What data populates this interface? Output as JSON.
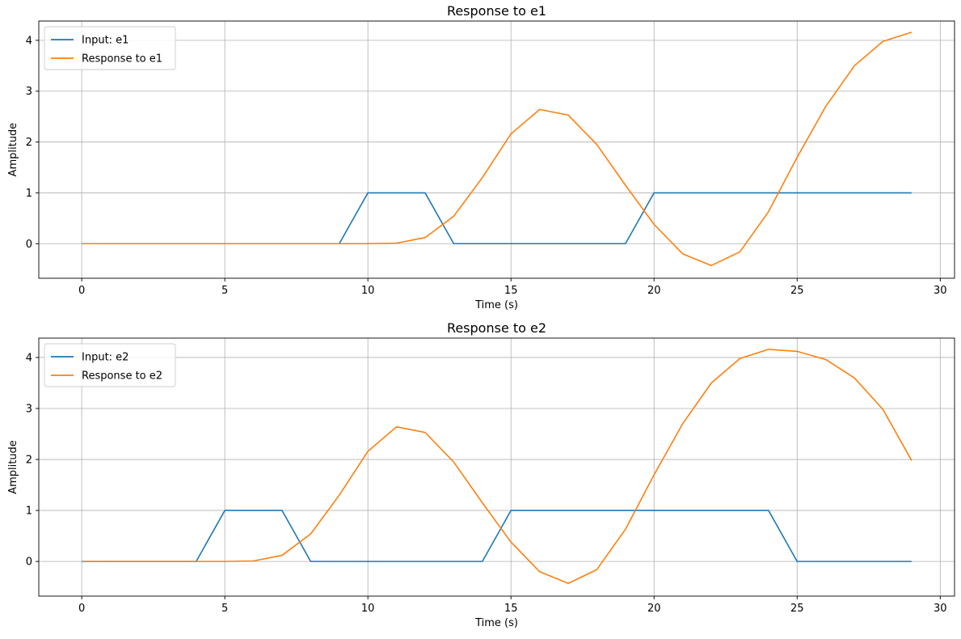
{
  "chart_data": [
    {
      "type": "line",
      "title": "Response to e1",
      "xlabel": "Time (s)",
      "ylabel": "Amplitude",
      "xlim": [
        -1.5,
        30.5
      ],
      "ylim": [
        -0.68,
        4.38
      ],
      "xticks": [
        0,
        5,
        10,
        15,
        20,
        25,
        30
      ],
      "yticks": [
        0,
        1,
        2,
        3,
        4
      ],
      "grid": true,
      "legend_position": "top-left",
      "x": [
        0,
        1,
        2,
        3,
        4,
        5,
        6,
        7,
        8,
        9,
        10,
        11,
        12,
        13,
        14,
        15,
        16,
        17,
        18,
        19,
        20,
        21,
        22,
        23,
        24,
        25,
        26,
        27,
        28,
        29
      ],
      "series": [
        {
          "name": "Input: e1",
          "color": "#1f77b4",
          "values": [
            0,
            0,
            0,
            0,
            0,
            0,
            0,
            0,
            0,
            0,
            1,
            1,
            1,
            0,
            0,
            0,
            0,
            0,
            0,
            0,
            1,
            1,
            1,
            1,
            1,
            1,
            1,
            1,
            1,
            1
          ]
        },
        {
          "name": "Response to e1",
          "color": "#ff7f0e",
          "values": [
            0,
            0,
            0,
            0,
            0,
            0,
            0,
            0,
            0,
            0,
            0,
            0.01,
            0.12,
            0.54,
            1.3,
            2.16,
            2.64,
            2.53,
            1.95,
            1.15,
            0.38,
            -0.2,
            -0.43,
            -0.16,
            0.63,
            1.7,
            2.7,
            3.5,
            3.98,
            4.16
          ]
        }
      ]
    },
    {
      "type": "line",
      "title": "Response to e2",
      "xlabel": "Time (s)",
      "ylabel": "Amplitude",
      "xlim": [
        -1.5,
        30.5
      ],
      "ylim": [
        -0.68,
        4.38
      ],
      "xticks": [
        0,
        5,
        10,
        15,
        20,
        25,
        30
      ],
      "yticks": [
        0,
        1,
        2,
        3,
        4
      ],
      "grid": true,
      "legend_position": "top-left",
      "x": [
        0,
        1,
        2,
        3,
        4,
        5,
        6,
        7,
        8,
        9,
        10,
        11,
        12,
        13,
        14,
        15,
        16,
        17,
        18,
        19,
        20,
        21,
        22,
        23,
        24,
        25,
        26,
        27,
        28,
        29
      ],
      "series": [
        {
          "name": "Input: e2",
          "color": "#1f77b4",
          "values": [
            0,
            0,
            0,
            0,
            0,
            1,
            1,
            1,
            0,
            0,
            0,
            0,
            0,
            0,
            0,
            1,
            1,
            1,
            1,
            1,
            1,
            1,
            1,
            1,
            1,
            0,
            0,
            0,
            0,
            0
          ]
        },
        {
          "name": "Response to e2",
          "color": "#ff7f0e",
          "values": [
            0,
            0,
            0,
            0,
            0,
            0,
            0.01,
            0.12,
            0.54,
            1.3,
            2.16,
            2.64,
            2.53,
            1.95,
            1.15,
            0.38,
            -0.2,
            -0.43,
            -0.16,
            0.63,
            1.7,
            2.7,
            3.5,
            3.98,
            4.16,
            4.12,
            3.96,
            3.6,
            2.98,
            1.98
          ]
        }
      ]
    }
  ]
}
